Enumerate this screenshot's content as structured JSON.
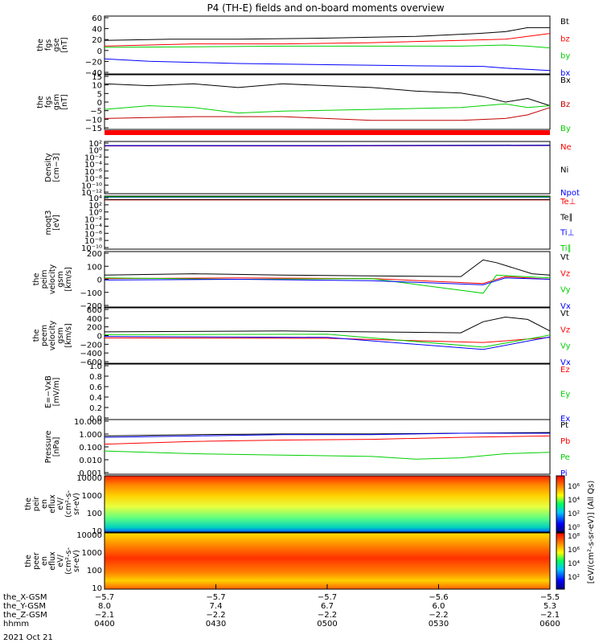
{
  "title": "P4 (TH-E) fields and on-board moments overview",
  "footer_date": "2021 Oct 21",
  "colors": {
    "black": "#000000",
    "red": "#ff0000",
    "dark_red": "#c00000",
    "green": "#00d000",
    "blue": "#0000ff"
  },
  "chart_data": [
    {
      "id": "fgs-gse",
      "type": "line",
      "ylabel": [
        "the",
        "fgs",
        "gse",
        "[nT]"
      ],
      "yticks": [
        "60",
        "40",
        "20",
        "0",
        "−20",
        "−40"
      ],
      "ylim": [
        -40,
        60
      ],
      "series": [
        {
          "name": "Bt",
          "color": "#000000",
          "x": [
            0,
            0.15,
            0.3,
            0.5,
            0.7,
            0.84,
            0.9,
            0.95,
            1
          ],
          "y": [
            18,
            20,
            20,
            22,
            25,
            30,
            33,
            40,
            40
          ]
        },
        {
          "name": "bz",
          "color": "#ff0000",
          "x": [
            0,
            0.2,
            0.4,
            0.6,
            0.8,
            0.9,
            0.95,
            1
          ],
          "y": [
            8,
            12,
            12,
            14,
            18,
            20,
            25,
            30
          ]
        },
        {
          "name": "by",
          "color": "#00d000",
          "x": [
            0,
            0.2,
            0.4,
            0.6,
            0.8,
            0.9,
            0.95,
            1
          ],
          "y": [
            6,
            7,
            8,
            8,
            8,
            10,
            8,
            5
          ]
        },
        {
          "name": "bx",
          "color": "#0000ff",
          "x": [
            0,
            0.1,
            0.3,
            0.5,
            0.7,
            0.85,
            0.9,
            1
          ],
          "y": [
            -14,
            -18,
            -22,
            -24,
            -26,
            -27,
            -30,
            -34
          ]
        }
      ]
    },
    {
      "id": "fgs-gsm",
      "type": "line",
      "ylabel": [
        "the",
        "fgs",
        "gsm",
        "[nT]"
      ],
      "yticks": [
        "15",
        "10",
        "5",
        "0",
        "−5",
        "−10",
        "−15"
      ],
      "ylim": [
        -15,
        15
      ],
      "series": [
        {
          "name": "Bx",
          "color": "#000000",
          "x": [
            0,
            0.1,
            0.2,
            0.3,
            0.4,
            0.5,
            0.6,
            0.7,
            0.8,
            0.85,
            0.9,
            0.95,
            1
          ],
          "y": [
            10,
            9,
            10,
            8,
            10,
            9,
            8,
            6,
            5,
            3,
            0,
            2,
            -2
          ]
        },
        {
          "name": "Bz",
          "color": "#c00000",
          "x": [
            0,
            0.2,
            0.4,
            0.6,
            0.8,
            0.9,
            0.95,
            1
          ],
          "y": [
            -9,
            -8,
            -8,
            -10,
            -10,
            -9,
            -7,
            -3
          ]
        },
        {
          "name": "By",
          "color": "#00d000",
          "x": [
            0,
            0.1,
            0.2,
            0.3,
            0.4,
            0.6,
            0.8,
            0.9,
            0.95,
            1
          ],
          "y": [
            -4,
            -2,
            -3,
            -6,
            -5,
            -4,
            -3,
            -1,
            -3,
            -2
          ]
        }
      ]
    },
    {
      "id": "density",
      "type": "line",
      "ylabel": [
        "Density",
        "[cm−3]"
      ],
      "log": true,
      "yticks": [
        "10²",
        "10⁰",
        "10⁻²",
        "10⁻⁴",
        "10⁻⁶",
        "10⁻⁸",
        "10⁻¹⁰",
        "10⁻¹²"
      ],
      "ylim": [
        -12,
        2
      ],
      "series": [
        {
          "name": "Ne",
          "color": "#ff0000",
          "x": [
            0,
            0.5,
            1
          ],
          "y": [
            0.8,
            0.8,
            0.9
          ]
        },
        {
          "name": "Ni",
          "color": "#000000",
          "x": [
            0,
            0.5,
            1
          ],
          "y": [
            0.9,
            0.9,
            1.0
          ]
        },
        {
          "name": "Npot",
          "color": "#0000ff",
          "x": [
            0,
            0.5,
            1
          ],
          "y": [
            0.85,
            0.85,
            0.95
          ]
        }
      ]
    },
    {
      "id": "temperature",
      "type": "line",
      "ylabel": [
        "moqt3",
        "[eV]"
      ],
      "log": true,
      "yticks": [
        "10⁴",
        "10²",
        "10⁰",
        "10⁻²",
        "10⁻⁴",
        "10⁻⁶",
        "10⁻⁸",
        "10⁻¹⁰"
      ],
      "ylim": [
        -10,
        4
      ],
      "series": [
        {
          "name": "Te⊥",
          "color": "#ff0000",
          "x": [
            0,
            0.5,
            1
          ],
          "y": [
            3.0,
            3.0,
            3.0
          ]
        },
        {
          "name": "Te∥",
          "color": "#000000",
          "x": [
            0,
            0.5,
            1
          ],
          "y": [
            3.1,
            3.1,
            3.1
          ]
        },
        {
          "name": "Ti⊥",
          "color": "#0000ff",
          "x": [
            0,
            0.5,
            1
          ],
          "y": [
            3.7,
            3.7,
            3.7
          ]
        },
        {
          "name": "Ti∥",
          "color": "#00d000",
          "x": [
            0,
            0.5,
            1
          ],
          "y": [
            3.8,
            3.8,
            3.8
          ]
        }
      ]
    },
    {
      "id": "peim-velocity",
      "type": "line",
      "ylabel": [
        "the",
        "peim",
        "velocity",
        "gsm",
        "[km/s]"
      ],
      "yticks": [
        "200",
        "100",
        "0",
        "−100",
        "−200"
      ],
      "ylim": [
        -200,
        200
      ],
      "series": [
        {
          "name": "Vt",
          "color": "#000000",
          "x": [
            0,
            0.2,
            0.4,
            0.6,
            0.8,
            0.85,
            0.88,
            0.92,
            0.96,
            1
          ],
          "y": [
            30,
            40,
            30,
            25,
            20,
            140,
            120,
            80,
            40,
            30
          ]
        },
        {
          "name": "Vz",
          "color": "#ff0000",
          "x": [
            0,
            0.3,
            0.6,
            0.85,
            0.9,
            1
          ],
          "y": [
            5,
            10,
            5,
            -30,
            20,
            0
          ]
        },
        {
          "name": "Vy",
          "color": "#00d000",
          "x": [
            0,
            0.3,
            0.6,
            0.85,
            0.88,
            1
          ],
          "y": [
            10,
            0,
            5,
            -100,
            30,
            10
          ]
        },
        {
          "name": "Vx",
          "color": "#0000ff",
          "x": [
            0,
            0.3,
            0.6,
            0.85,
            0.9,
            1
          ],
          "y": [
            -5,
            0,
            -10,
            -40,
            10,
            0
          ]
        }
      ]
    },
    {
      "id": "peem-velocity",
      "type": "line",
      "ylabel": [
        "the",
        "peem",
        "velocity",
        "gsm",
        "[km/s]"
      ],
      "yticks": [
        "600",
        "400",
        "200",
        "0",
        "−200",
        "−400",
        "−600"
      ],
      "ylim": [
        -600,
        600
      ],
      "series": [
        {
          "name": "Vt",
          "color": "#000000",
          "x": [
            0,
            0.4,
            0.8,
            0.85,
            0.9,
            0.95,
            1
          ],
          "y": [
            80,
            100,
            60,
            300,
            400,
            350,
            100
          ]
        },
        {
          "name": "Vz",
          "color": "#ff0000",
          "x": [
            0,
            0.5,
            0.85,
            1
          ],
          "y": [
            -50,
            -60,
            -150,
            -40
          ]
        },
        {
          "name": "Vy",
          "color": "#00d000",
          "x": [
            0,
            0.5,
            0.85,
            1
          ],
          "y": [
            20,
            30,
            -250,
            10
          ]
        },
        {
          "name": "Vx",
          "color": "#0000ff",
          "x": [
            0,
            0.5,
            0.85,
            1
          ],
          "y": [
            -20,
            -40,
            -300,
            -30
          ]
        }
      ]
    },
    {
      "id": "e-field",
      "type": "line",
      "ylabel": [
        "E=−VxB",
        "[mV/m]"
      ],
      "yticks": [
        "1.0",
        "0.8",
        "0.6",
        "0.4",
        "0.2",
        "0.0"
      ],
      "ylim": [
        0,
        1
      ],
      "series": [
        {
          "name": "Ez",
          "color": "#ff0000",
          "x": [],
          "y": []
        },
        {
          "name": "Ey",
          "color": "#00d000",
          "x": [],
          "y": []
        },
        {
          "name": "Ex",
          "color": "#0000ff",
          "x": [],
          "y": []
        }
      ]
    },
    {
      "id": "pressure",
      "type": "line",
      "ylabel": [
        "Pressure",
        "[nPa]"
      ],
      "log": true,
      "yticks": [
        "10.000",
        "1.000",
        "0.100",
        "0.010",
        "0.001"
      ],
      "ylim": [
        -3,
        1
      ],
      "series": [
        {
          "name": "Pt",
          "color": "#000000",
          "x": [
            0,
            0.2,
            0.4,
            0.6,
            0.8,
            1
          ],
          "y": [
            -0.2,
            -0.1,
            -0.05,
            -0.05,
            0.0,
            0.05
          ]
        },
        {
          "name": "Pb",
          "color": "#ff0000",
          "x": [
            0,
            0.2,
            0.4,
            0.6,
            0.8,
            1
          ],
          "y": [
            -0.8,
            -0.6,
            -0.5,
            -0.45,
            -0.3,
            -0.2
          ]
        },
        {
          "name": "Pe",
          "color": "#00d000",
          "x": [
            0,
            0.2,
            0.4,
            0.6,
            0.7,
            0.8,
            0.9,
            1
          ],
          "y": [
            -1.3,
            -1.5,
            -1.6,
            -1.7,
            -1.9,
            -1.8,
            -1.5,
            -1.4
          ]
        },
        {
          "name": "Pi",
          "color": "#0000ff",
          "x": [
            0,
            0.2,
            0.4,
            0.6,
            0.8,
            1
          ],
          "y": [
            -0.3,
            -0.2,
            -0.1,
            -0.1,
            0.0,
            0.0
          ]
        }
      ]
    },
    {
      "id": "peir-eflux",
      "type": "heatmap",
      "ylabel": [
        "the",
        "peir",
        "en",
        "eflux",
        "eV/",
        "(cm²-s-",
        "sr-eV)"
      ],
      "yticks": [
        "10000",
        "1000",
        "100",
        "10"
      ]
    },
    {
      "id": "peer-eflux",
      "type": "heatmap",
      "ylabel": [
        "the",
        "peer",
        "en",
        "eflux",
        "eV/",
        "(cm²-s-",
        "sr-eV)"
      ],
      "yticks": [
        "10000",
        "1000",
        "100",
        "10"
      ]
    }
  ],
  "colorbar": {
    "label": "[eV/(cm²-s-sr-eV)] (All Qs)",
    "ticks_upper": [
      "10⁶",
      "10⁴",
      "10²",
      "10⁰"
    ],
    "ticks_lower": [
      "10⁸",
      "10⁶",
      "10⁴",
      "10²"
    ]
  },
  "x_axis": {
    "row_labels": [
      "the_X-GSM",
      "the_Y-GSM",
      "the_Z-GSM",
      "hhmm"
    ],
    "columns": [
      {
        "x_gsm": "−5.7",
        "y_gsm": "8.0",
        "z_gsm": "−2.1",
        "time": "0400"
      },
      {
        "x_gsm": "−5.7",
        "y_gsm": "7.4",
        "z_gsm": "−2.2",
        "time": "0430"
      },
      {
        "x_gsm": "−5.7",
        "y_gsm": "6.7",
        "z_gsm": "−2.2",
        "time": "0500"
      },
      {
        "x_gsm": "−5.6",
        "y_gsm": "6.0",
        "z_gsm": "−2.2",
        "time": "0530"
      },
      {
        "x_gsm": "−5.5",
        "y_gsm": "5.3",
        "z_gsm": "−2.1",
        "time": "0600"
      }
    ]
  }
}
